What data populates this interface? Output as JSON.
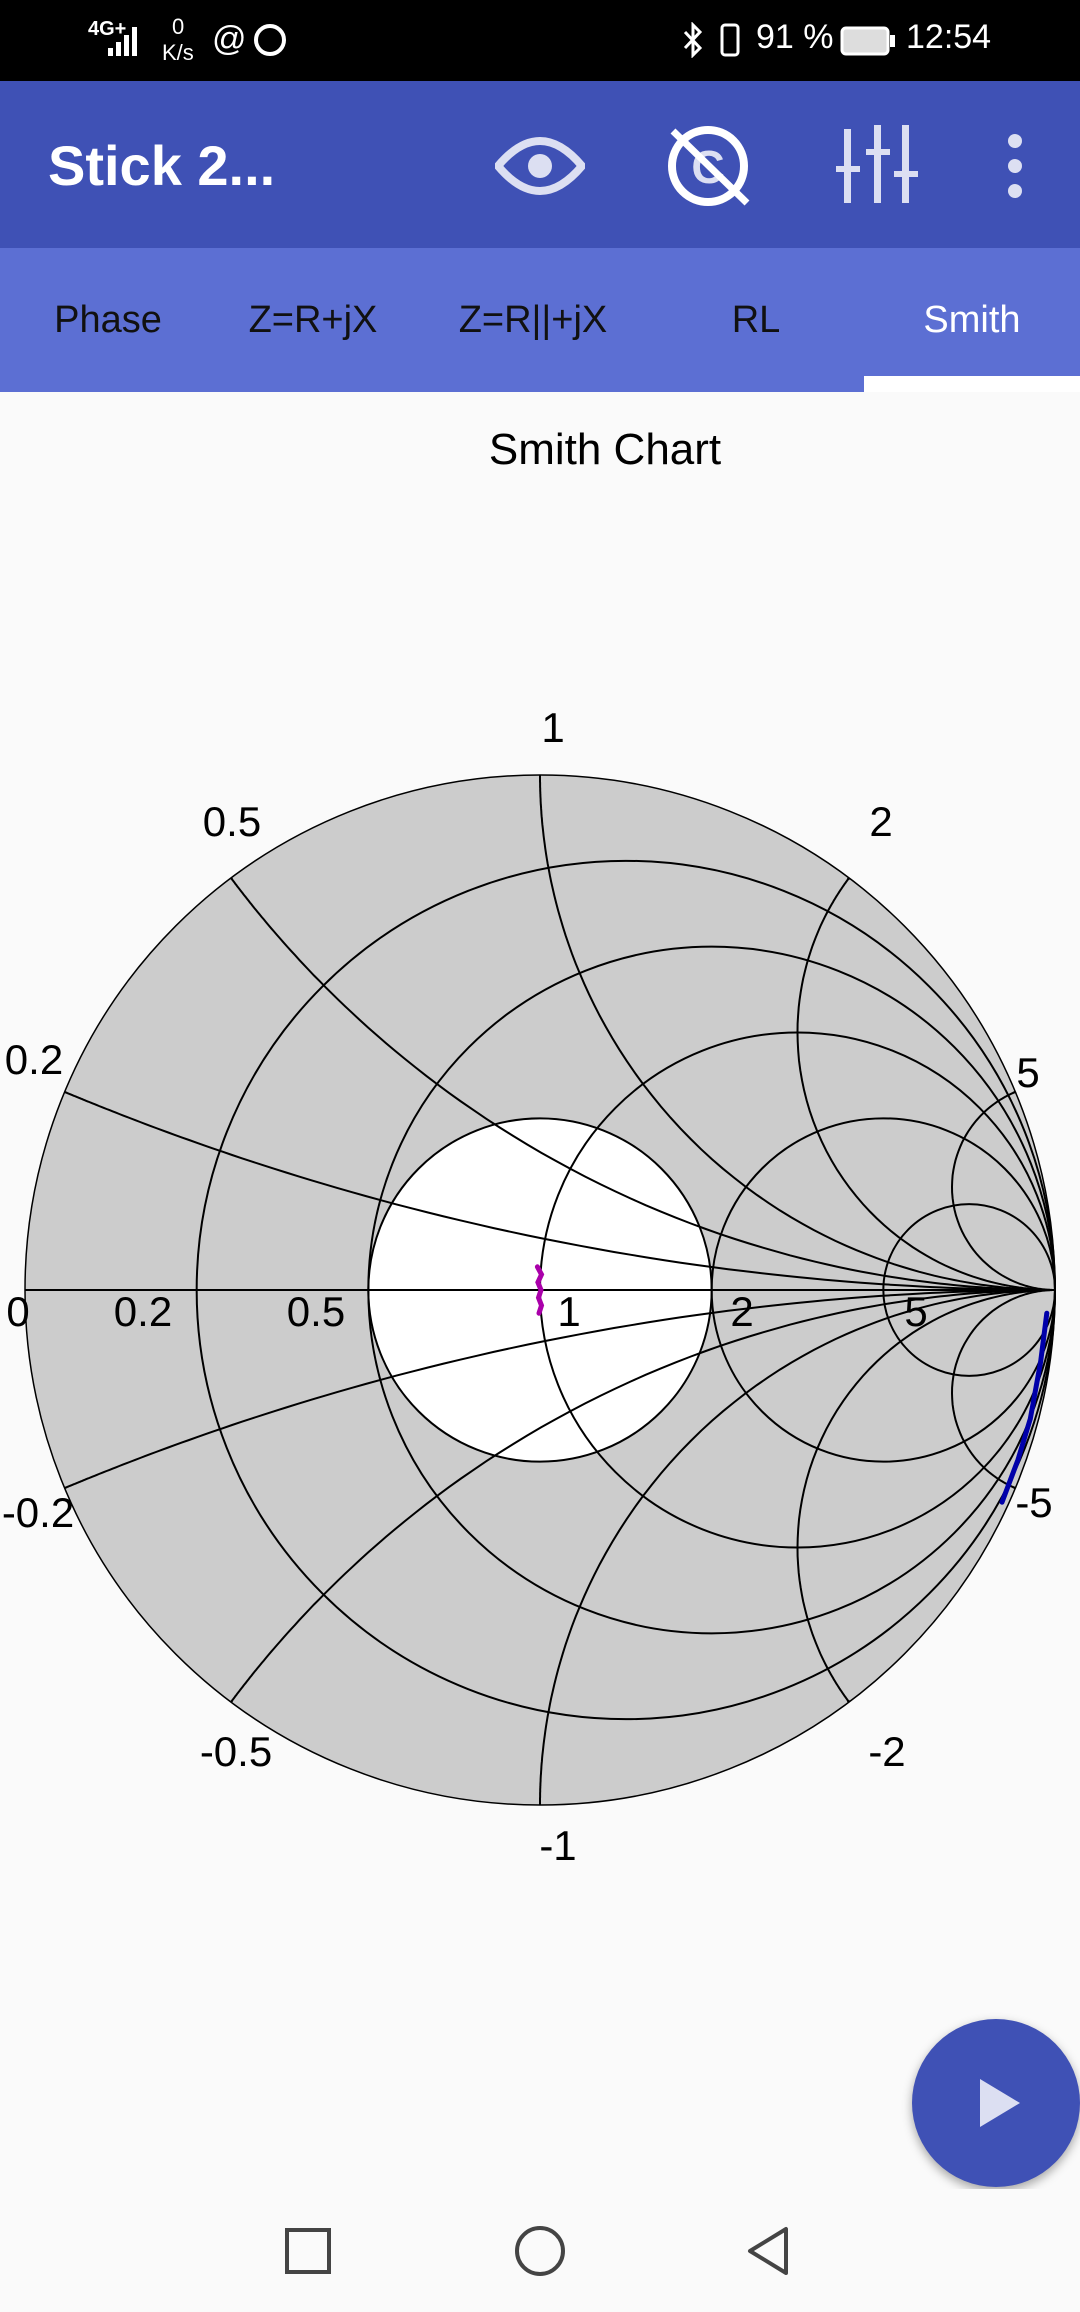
{
  "status_bar": {
    "network": "4G+",
    "speed_value": "0",
    "speed_unit": "K/s",
    "battery": "91 %",
    "time": "12:54",
    "icons": [
      "signal-icon",
      "at-icon",
      "whatsapp-icon",
      "bluetooth-icon",
      "vibrate-icon",
      "battery-icon"
    ]
  },
  "toolbar": {
    "title": "Stick 2...",
    "actions": [
      "eye-icon",
      "autoscale-off-icon",
      "sliders-icon",
      "more-vert-icon"
    ],
    "color": "#3f51b5"
  },
  "tabs": {
    "items": [
      {
        "label": "Phase"
      },
      {
        "label": "Z=R+jX"
      },
      {
        "label": "Z=R||+jX"
      },
      {
        "label": "RL"
      },
      {
        "label": "Smith"
      }
    ],
    "active": "Smith",
    "color": "#5c6fd3"
  },
  "chart_data": {
    "type": "smith",
    "title": "Smith Chart",
    "resistance_circles": [
      0.2,
      0.5,
      1,
      2,
      5
    ],
    "reactance_arcs": [
      0.2,
      0.5,
      1,
      2,
      5,
      -0.2,
      -0.5,
      -1,
      -2,
      -5
    ],
    "resistance_labels": [
      "0",
      "0.2",
      "0.5",
      "1",
      "2",
      "5"
    ],
    "reactance_labels": [
      "1",
      "0.5",
      "2",
      "0.2",
      "5",
      "-0.2",
      "-5",
      "-0.5",
      "-2",
      "-1"
    ],
    "vswr_highlight": 2,
    "colors": {
      "background": "#cccccc",
      "vswr_region": "#ffffff",
      "grid": "#000000"
    },
    "series": [
      {
        "color": "#aa00aa",
        "gamma": [
          [
            -0.005,
            0.045
          ],
          [
            0.003,
            0.03
          ],
          [
            -0.004,
            0.015
          ],
          [
            0.002,
            0.0
          ],
          [
            -0.003,
            -0.015
          ],
          [
            0.003,
            -0.03
          ],
          [
            -0.002,
            -0.045
          ]
        ]
      },
      {
        "color": "#0000aa",
        "gamma": [
          [
            0.984,
            -0.045
          ],
          [
            0.972,
            -0.14
          ],
          [
            0.952,
            -0.25
          ],
          [
            0.928,
            -0.33
          ],
          [
            0.897,
            -0.412
          ]
        ]
      }
    ]
  },
  "fab": {
    "icon": "play-icon"
  },
  "nav_bar": {
    "icons": [
      "recents-icon",
      "home-icon",
      "back-icon"
    ]
  }
}
